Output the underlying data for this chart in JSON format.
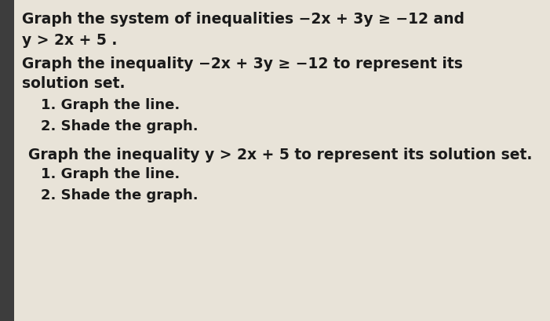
{
  "bg_color": "#3d3d3d",
  "content_bg_color": "#e8e3d8",
  "font_color": "#1a1a1a",
  "title_line1": "Graph the system of inequalities −2x + 3y ≥ −12 and",
  "title_line2": "y > 2x + 5 .",
  "section1_line1": "Graph the inequality −2x + 3y ≥ −12 to represent its",
  "section1_line2": "solution set.",
  "item1a": "1. Graph the line.",
  "item1b": "2. Shade the graph.",
  "section2_line1": "Graph the inequality y > 2x + 5 to represent its solution set.",
  "item2a": "1. Graph the line.",
  "item2b": "2. Shade the graph.",
  "title_fontsize": 13.5,
  "body_fontsize": 13.5,
  "item_fontsize": 13.0
}
